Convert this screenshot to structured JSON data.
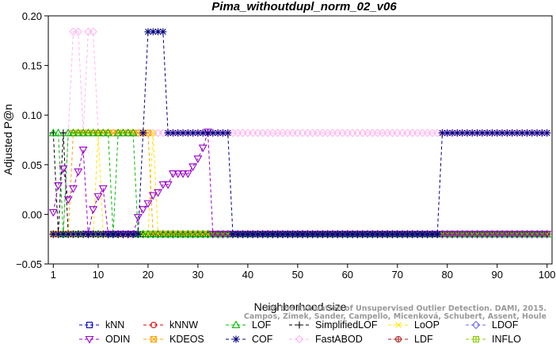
{
  "chart_data": {
    "type": "line",
    "title": "Pima_withoutdupl_norm_02_v06",
    "xlabel": "Neighborhood size",
    "ylabel": "Adjusted P@n",
    "xlim": [
      0,
      101
    ],
    "ylim": [
      -0.05,
      0.2
    ],
    "x_ticks": [
      1,
      10,
      20,
      30,
      40,
      50,
      60,
      70,
      80,
      90,
      100
    ],
    "y_ticks": [
      -0.05,
      0.0,
      0.05,
      0.1,
      0.15,
      0.2
    ],
    "y_tick_labels": [
      "−0.05",
      "0.00",
      "0.05",
      "0.10",
      "0.15",
      "0.20"
    ],
    "grid": false,
    "legend_position": "bottom",
    "watermark": [
      "Campos, Zimek, Sander, Campello, Micenková, Schubert, Assent, Houle",
      "On the Evaluation of Unsupervised Outlier Detection. DAMI, 2015."
    ],
    "series": [
      {
        "name": "kNN",
        "color": "#0000cc",
        "marker": "square",
        "points": [
          [
            1,
            -0.02
          ],
          [
            100,
            -0.02
          ]
        ]
      },
      {
        "name": "kNNW",
        "color": "#dd0000",
        "marker": "circle",
        "points": [
          [
            1,
            -0.02
          ],
          [
            100,
            -0.02
          ]
        ]
      },
      {
        "name": "LOF",
        "color": "#00bb00",
        "marker": "triangle",
        "points": [
          [
            1,
            0.082
          ],
          [
            2,
            0.082
          ],
          [
            3,
            -0.02
          ],
          [
            4,
            0.082
          ],
          [
            5,
            0.082
          ],
          [
            6,
            0.082
          ],
          [
            7,
            0.082
          ],
          [
            8,
            0.082
          ],
          [
            9,
            0.082
          ],
          [
            10,
            0.082
          ],
          [
            11,
            0.082
          ],
          [
            12,
            0.082
          ],
          [
            13,
            -0.02
          ],
          [
            14,
            0.082
          ],
          [
            15,
            0.082
          ],
          [
            16,
            0.082
          ],
          [
            17,
            0.082
          ],
          [
            18,
            -0.02
          ],
          [
            100,
            -0.02
          ]
        ]
      },
      {
        "name": "SimplifiedLOF",
        "color": "#000000",
        "marker": "plus",
        "points": [
          [
            1,
            0.082
          ],
          [
            2,
            -0.02
          ],
          [
            3,
            0.082
          ],
          [
            4,
            -0.02
          ],
          [
            100,
            -0.02
          ]
        ]
      },
      {
        "name": "LoOP",
        "color": "#ffe600",
        "marker": "cross",
        "points": [
          [
            1,
            -0.02
          ],
          [
            9,
            -0.02
          ],
          [
            10,
            0.082
          ],
          [
            11,
            -0.02
          ],
          [
            20,
            -0.02
          ],
          [
            21,
            0.082
          ],
          [
            22,
            -0.02
          ],
          [
            100,
            -0.02
          ]
        ]
      },
      {
        "name": "LDOF",
        "color": "#6a6aff",
        "marker": "diamond",
        "points": [
          [
            1,
            -0.02
          ],
          [
            100,
            -0.02
          ]
        ]
      },
      {
        "name": "ODIN",
        "color": "#9900cc",
        "marker": "triangle-down",
        "points": [
          [
            1,
            0.002
          ],
          [
            2,
            0.029
          ],
          [
            3,
            0.046
          ],
          [
            4,
            0.015
          ],
          [
            5,
            0.026
          ],
          [
            6,
            0.043
          ],
          [
            7,
            0.065
          ],
          [
            8,
            -0.02
          ],
          [
            9,
            0.005
          ],
          [
            10,
            0.018
          ],
          [
            11,
            0.026
          ],
          [
            12,
            -0.02
          ],
          [
            13,
            -0.02
          ],
          [
            14,
            -0.02
          ],
          [
            15,
            -0.02
          ],
          [
            16,
            -0.02
          ],
          [
            17,
            -0.02
          ],
          [
            18,
            -0.003
          ],
          [
            19,
            0.005
          ],
          [
            20,
            0.011
          ],
          [
            21,
            0.019
          ],
          [
            22,
            0.022
          ],
          [
            23,
            0.03
          ],
          [
            24,
            0.03
          ],
          [
            25,
            0.041
          ],
          [
            26,
            0.041
          ],
          [
            27,
            0.041
          ],
          [
            28,
            0.041
          ],
          [
            29,
            0.048
          ],
          [
            30,
            0.056
          ],
          [
            31,
            0.067
          ],
          [
            32,
            0.083
          ],
          [
            33,
            -0.02
          ],
          [
            100,
            -0.02
          ]
        ]
      },
      {
        "name": "KDEOS",
        "color": "#ffa500",
        "marker": "square-x",
        "points": [
          [
            1,
            -0.02
          ],
          [
            4,
            -0.02
          ],
          [
            5,
            0.082
          ],
          [
            6,
            0.082
          ],
          [
            7,
            0.082
          ],
          [
            8,
            0.082
          ],
          [
            9,
            0.082
          ],
          [
            10,
            0.082
          ],
          [
            11,
            0.082
          ],
          [
            12,
            0.082
          ],
          [
            13,
            0.082
          ],
          [
            14,
            0.082
          ],
          [
            15,
            0.082
          ],
          [
            16,
            0.082
          ],
          [
            17,
            0.082
          ],
          [
            18,
            0.082
          ],
          [
            19,
            0.082
          ],
          [
            20,
            0.082
          ],
          [
            21,
            -0.02
          ],
          [
            100,
            -0.02
          ]
        ]
      },
      {
        "name": "COF",
        "color": "#000080",
        "marker": "star",
        "points": [
          [
            1,
            -0.02
          ],
          [
            17,
            -0.02
          ],
          [
            18,
            -0.02
          ],
          [
            19,
            0.082
          ],
          [
            20,
            0.184
          ],
          [
            21,
            0.184
          ],
          [
            22,
            0.184
          ],
          [
            23,
            0.184
          ],
          [
            24,
            0.082
          ],
          [
            25,
            0.082
          ],
          [
            26,
            0.082
          ],
          [
            27,
            0.082
          ],
          [
            28,
            0.082
          ],
          [
            29,
            0.082
          ],
          [
            30,
            0.082
          ],
          [
            31,
            0.082
          ],
          [
            32,
            0.082
          ],
          [
            33,
            0.082
          ],
          [
            34,
            0.082
          ],
          [
            35,
            0.082
          ],
          [
            36,
            0.082
          ],
          [
            37,
            -0.02
          ],
          [
            77,
            -0.02
          ],
          [
            78,
            -0.02
          ],
          [
            79,
            0.082
          ],
          [
            80,
            0.082
          ],
          [
            81,
            0.082
          ],
          [
            82,
            0.082
          ],
          [
            83,
            0.082
          ],
          [
            84,
            0.082
          ],
          [
            85,
            0.082
          ],
          [
            86,
            0.082
          ],
          [
            87,
            0.082
          ],
          [
            88,
            0.082
          ],
          [
            89,
            0.082
          ],
          [
            90,
            0.082
          ],
          [
            91,
            0.082
          ],
          [
            92,
            0.082
          ],
          [
            93,
            0.082
          ],
          [
            94,
            0.082
          ],
          [
            95,
            0.082
          ],
          [
            96,
            0.082
          ],
          [
            97,
            0.082
          ],
          [
            98,
            0.082
          ],
          [
            99,
            0.082
          ],
          [
            100,
            0.082
          ]
        ]
      },
      {
        "name": "FastABOD",
        "color": "#ffb6f0",
        "marker": "diamond",
        "points": [
          [
            1,
            -0.02
          ],
          [
            3,
            -0.02
          ],
          [
            4,
            0.082
          ],
          [
            5,
            0.184
          ],
          [
            6,
            0.184
          ],
          [
            7,
            0.082
          ],
          [
            8,
            0.184
          ],
          [
            9,
            0.184
          ],
          [
            10,
            0.082
          ],
          [
            11,
            0.082
          ],
          [
            12,
            0.082
          ],
          [
            13,
            0.082
          ],
          [
            14,
            0.082
          ],
          [
            15,
            0.082
          ],
          [
            16,
            0.082
          ],
          [
            17,
            0.082
          ],
          [
            18,
            0.082
          ],
          [
            19,
            0.082
          ],
          [
            20,
            0.082
          ],
          [
            21,
            0.082
          ],
          [
            22,
            0.082
          ],
          [
            23,
            0.082
          ],
          [
            24,
            0.082
          ],
          [
            25,
            0.082
          ],
          [
            26,
            0.082
          ],
          [
            27,
            0.082
          ],
          [
            28,
            0.082
          ],
          [
            29,
            0.082
          ],
          [
            30,
            0.082
          ],
          [
            31,
            0.082
          ],
          [
            32,
            0.082
          ],
          [
            33,
            0.082
          ],
          [
            34,
            0.082
          ],
          [
            35,
            0.082
          ],
          [
            36,
            0.082
          ],
          [
            37,
            0.082
          ],
          [
            38,
            0.082
          ],
          [
            39,
            0.082
          ],
          [
            40,
            0.082
          ],
          [
            41,
            0.082
          ],
          [
            42,
            0.082
          ],
          [
            43,
            0.082
          ],
          [
            44,
            0.082
          ],
          [
            45,
            0.082
          ],
          [
            46,
            0.082
          ],
          [
            47,
            0.082
          ],
          [
            48,
            0.082
          ],
          [
            49,
            0.082
          ],
          [
            50,
            0.082
          ],
          [
            51,
            0.082
          ],
          [
            52,
            0.082
          ],
          [
            53,
            0.082
          ],
          [
            54,
            0.082
          ],
          [
            55,
            0.082
          ],
          [
            56,
            0.082
          ],
          [
            57,
            0.082
          ],
          [
            58,
            0.082
          ],
          [
            59,
            0.082
          ],
          [
            60,
            0.082
          ],
          [
            61,
            0.082
          ],
          [
            62,
            0.082
          ],
          [
            63,
            0.082
          ],
          [
            64,
            0.082
          ],
          [
            65,
            0.082
          ],
          [
            66,
            0.082
          ],
          [
            67,
            0.082
          ],
          [
            68,
            0.082
          ],
          [
            69,
            0.082
          ],
          [
            70,
            0.082
          ],
          [
            71,
            0.082
          ],
          [
            72,
            0.082
          ],
          [
            73,
            0.082
          ],
          [
            74,
            0.082
          ],
          [
            75,
            0.082
          ],
          [
            76,
            0.082
          ],
          [
            77,
            0.082
          ],
          [
            78,
            0.082
          ],
          [
            79,
            0.082
          ],
          [
            80,
            0.082
          ],
          [
            81,
            0.082
          ],
          [
            82,
            0.082
          ],
          [
            83,
            0.082
          ],
          [
            84,
            0.082
          ],
          [
            85,
            0.082
          ],
          [
            86,
            0.082
          ],
          [
            87,
            0.082
          ],
          [
            88,
            0.082
          ],
          [
            89,
            0.082
          ],
          [
            90,
            0.082
          ],
          [
            91,
            0.082
          ],
          [
            92,
            0.082
          ],
          [
            93,
            0.082
          ],
          [
            94,
            0.082
          ],
          [
            95,
            0.082
          ],
          [
            96,
            0.082
          ],
          [
            97,
            0.082
          ],
          [
            98,
            0.082
          ],
          [
            99,
            0.082
          ],
          [
            100,
            0.082
          ]
        ]
      },
      {
        "name": "LDF",
        "color": "#aa2222",
        "marker": "circle-plus",
        "points": [
          [
            1,
            -0.02
          ],
          [
            100,
            -0.02
          ]
        ]
      },
      {
        "name": "INFLO",
        "color": "#88cc00",
        "marker": "square-plus",
        "points": [
          [
            1,
            -0.02
          ],
          [
            100,
            -0.02
          ]
        ]
      }
    ]
  }
}
